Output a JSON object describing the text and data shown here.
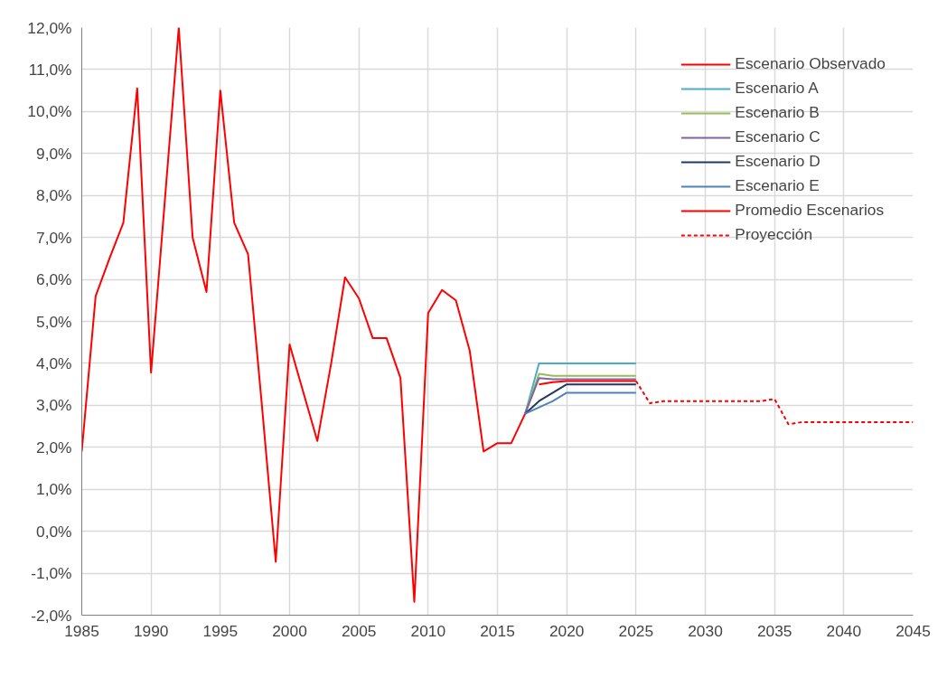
{
  "chart_data": {
    "type": "line",
    "xlim": [
      1985,
      2045
    ],
    "xticks": [
      1985,
      1990,
      1995,
      2000,
      2005,
      2010,
      2015,
      2020,
      2025,
      2030,
      2035,
      2040,
      2045
    ],
    "ylim": [
      -2,
      12
    ],
    "yticks": [
      {
        "value": -2,
        "label": "-2,0%"
      },
      {
        "value": -1,
        "label": "-1,0%"
      },
      {
        "value": 0,
        "label": "0,0%"
      },
      {
        "value": 1,
        "label": "1,0%"
      },
      {
        "value": 2,
        "label": "2,0%"
      },
      {
        "value": 3,
        "label": "3,0%"
      },
      {
        "value": 4,
        "label": "4,0%"
      },
      {
        "value": 5,
        "label": "5,0%"
      },
      {
        "value": 6,
        "label": "6,0%"
      },
      {
        "value": 7,
        "label": "7,0%"
      },
      {
        "value": 8,
        "label": "8,0%"
      },
      {
        "value": 9,
        "label": "9,0%"
      },
      {
        "value": 10,
        "label": "10,0%"
      },
      {
        "value": 11,
        "label": "11,0%"
      },
      {
        "value": 12,
        "label": "12,0%"
      }
    ],
    "grid": true,
    "legend": "top right",
    "line_style": "solid",
    "series": [
      {
        "name": "Escenario Observado",
        "color": "#ff0000",
        "x": [
          1985,
          1986,
          1987,
          1988,
          1989,
          1990,
          1991,
          1992,
          1993,
          1994,
          1995,
          1996,
          1997,
          1998,
          1999,
          2000,
          2001,
          2002,
          2003,
          2004,
          2005,
          2006,
          2007,
          2008,
          2009,
          2010,
          2011,
          2012,
          2013,
          2014,
          2015,
          2016,
          2017
        ],
        "values": [
          1.9,
          5.6,
          6.5,
          7.35,
          10.55,
          3.78,
          7.9,
          12.0,
          7.0,
          5.7,
          10.5,
          7.35,
          6.6,
          3.0,
          -0.73,
          4.45,
          3.3,
          2.15,
          4.0,
          6.05,
          5.55,
          4.6,
          4.6,
          3.65,
          -1.68,
          5.2,
          5.75,
          5.5,
          4.3,
          1.9,
          2.1,
          2.1,
          2.8
        ]
      },
      {
        "name": "Escenario A",
        "color": "#4bacc6",
        "x": [
          2017,
          2018,
          2019,
          2020,
          2021,
          2022,
          2023,
          2024,
          2025
        ],
        "values": [
          2.8,
          4.0,
          4.0,
          4.0,
          4.0,
          4.0,
          4.0,
          4.0,
          4.0
        ]
      },
      {
        "name": "Escenario B",
        "color": "#9bbb59",
        "x": [
          2017,
          2018,
          2019,
          2020,
          2021,
          2022,
          2023,
          2024,
          2025
        ],
        "values": [
          2.8,
          3.75,
          3.7,
          3.7,
          3.7,
          3.7,
          3.7,
          3.7,
          3.7
        ]
      },
      {
        "name": "Escenario C",
        "color": "#8064a2",
        "x": [
          2017,
          2018,
          2019,
          2020,
          2021,
          2022,
          2023,
          2024,
          2025
        ],
        "values": [
          2.8,
          3.65,
          3.62,
          3.62,
          3.62,
          3.62,
          3.62,
          3.62,
          3.62
        ]
      },
      {
        "name": "Escenario D",
        "color": "#1f3864",
        "x": [
          2017,
          2018,
          2019,
          2020,
          2021,
          2022,
          2023,
          2024,
          2025
        ],
        "values": [
          2.8,
          3.1,
          3.3,
          3.5,
          3.5,
          3.5,
          3.5,
          3.5,
          3.5
        ]
      },
      {
        "name": "Escenario E",
        "color": "#4f81bd",
        "x": [
          2017,
          2018,
          2019,
          2020,
          2021,
          2022,
          2023,
          2024,
          2025
        ],
        "values": [
          2.8,
          2.95,
          3.1,
          3.3,
          3.3,
          3.3,
          3.3,
          3.3,
          3.3
        ]
      },
      {
        "name": "Promedio Escenarios",
        "color": "#ff0000",
        "x": [
          2018,
          2019,
          2020,
          2021,
          2022,
          2023,
          2024,
          2025
        ],
        "values": [
          3.5,
          3.55,
          3.58,
          3.58,
          3.58,
          3.58,
          3.58,
          3.58
        ]
      },
      {
        "name": "Proyección",
        "color": "#ff0000",
        "line_style": "dashed",
        "x": [
          2025,
          2026,
          2027,
          2028,
          2029,
          2030,
          2031,
          2032,
          2033,
          2034,
          2035,
          2036,
          2037,
          2038,
          2039,
          2040,
          2041,
          2042,
          2043,
          2044,
          2045
        ],
        "values": [
          3.58,
          3.05,
          3.1,
          3.1,
          3.1,
          3.1,
          3.1,
          3.1,
          3.1,
          3.1,
          3.15,
          2.55,
          2.6,
          2.6,
          2.6,
          2.6,
          2.6,
          2.6,
          2.6,
          2.6,
          2.6
        ]
      }
    ]
  }
}
